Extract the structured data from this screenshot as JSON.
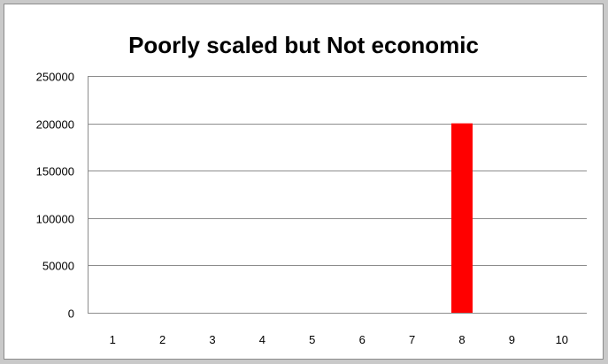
{
  "chart_data": {
    "type": "bar",
    "title": "Poorly scaled but Not economic",
    "categories": [
      "1",
      "2",
      "3",
      "4",
      "5",
      "6",
      "7",
      "8",
      "9",
      "10"
    ],
    "values": [
      0,
      0,
      0,
      0,
      0,
      0,
      0,
      200000,
      0,
      0
    ],
    "ylim": [
      0,
      250000
    ],
    "yticks": [
      0,
      50000,
      100000,
      150000,
      200000,
      250000
    ],
    "grid": true,
    "bar_color": "#ff0000"
  }
}
